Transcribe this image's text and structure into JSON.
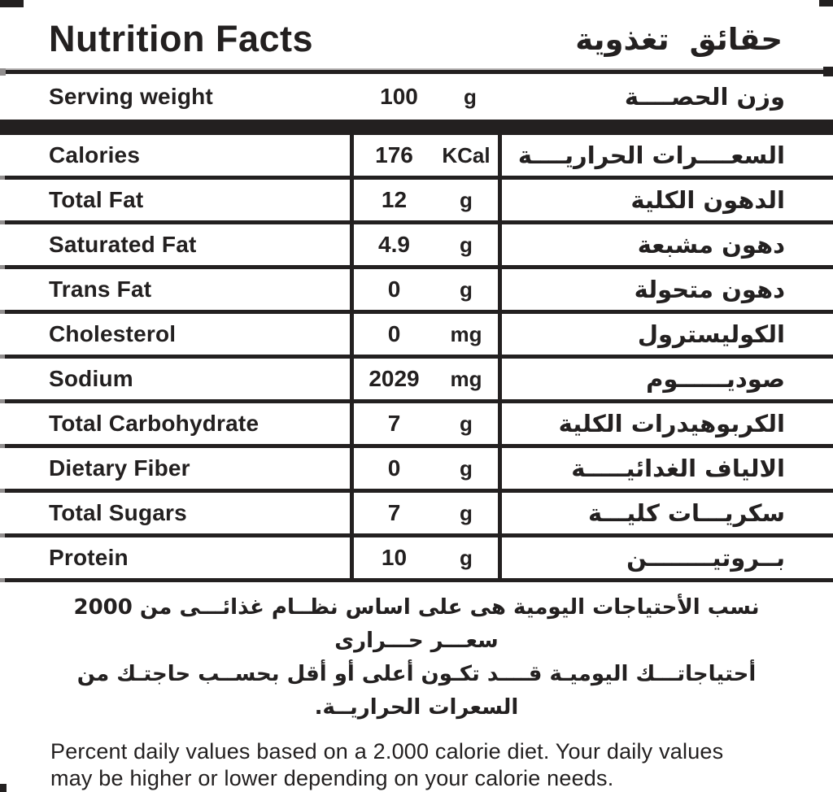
{
  "colors": {
    "ink": "#232020",
    "background": "#ffffff"
  },
  "header": {
    "title_en": "Nutrition Facts",
    "title_ar": "حقائق تغذوية"
  },
  "serving": {
    "label_en": "Serving weight",
    "value": "100",
    "unit": "g",
    "label_ar": "وزن الحصــــة"
  },
  "rows": [
    {
      "en": "Calories",
      "value": "176",
      "unit": "KCal",
      "ar": "السعــــرات الحراريــــة"
    },
    {
      "en": "Total Fat",
      "value": "12",
      "unit": "g",
      "ar": "الدهون الكلية"
    },
    {
      "en": "Saturated Fat",
      "value": "4.9",
      "unit": "g",
      "ar": "دهون مشبعة"
    },
    {
      "en": "Trans Fat",
      "value": "0",
      "unit": "g",
      "ar": "دهون متحولة"
    },
    {
      "en": "Cholesterol",
      "value": "0",
      "unit": "mg",
      "ar": "الكوليسترول"
    },
    {
      "en": "Sodium",
      "value": "2029",
      "unit": "mg",
      "ar": "صوديــــــوم"
    },
    {
      "en": "Total Carbohydrate",
      "value": "7",
      "unit": "g",
      "ar": "الكربوهيدرات الكلية"
    },
    {
      "en": "Dietary Fiber",
      "value": "0",
      "unit": "g",
      "ar": "الالياف الغدائيـــــة"
    },
    {
      "en": "Total Sugars",
      "value": "7",
      "unit": "g",
      "ar": "سكريـــات كليـــة"
    },
    {
      "en": "Protein",
      "value": "10",
      "unit": "g",
      "ar": "بــروتيــــــــن"
    }
  ],
  "footnote": {
    "ar_line1": "نسب الأحتياجات اليومية هى على اساس نظــام غذائـــى من 2000 سعـــر حـــرارى",
    "ar_line2": "أحتياجاتـــك اليوميـة قــــد تكـون أعلى أو أقل بحســب حاجتـك من السعرات الحراريــة.",
    "en_line1": "Percent daily values based on a 2.000 calorie diet. Your daily values",
    "en_line2": "may be higher or lower depending on your calorie needs."
  }
}
